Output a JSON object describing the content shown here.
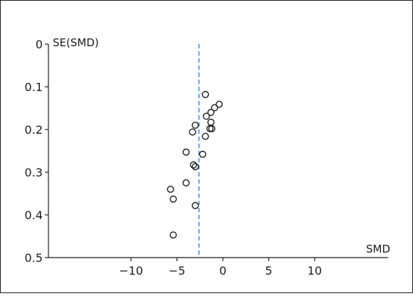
{
  "chart_data": {
    "type": "scatter",
    "title": "",
    "xlabel": "SMD",
    "ylabel": "SE(SMD)",
    "xlim": [
      -19,
      18
    ],
    "ylim": [
      0,
      0.5
    ],
    "y_inverted": true,
    "xticks": [
      -10,
      -5,
      0,
      5,
      10
    ],
    "xtick_labels": [
      "−10",
      "−5",
      "0",
      "5",
      "10"
    ],
    "yticks": [
      0,
      0.1,
      0.2,
      0.3,
      0.4,
      0.5
    ],
    "ytick_labels": [
      "0",
      "0.1",
      "0.2",
      "0.3",
      "0.4",
      "0.5"
    ],
    "reference_line": {
      "x": -2.6,
      "style": "dashed",
      "color": "#3b8fd6"
    },
    "grid": false,
    "legend": "none",
    "marker": "open-circle",
    "points": [
      {
        "x": -1.9,
        "y": 0.118
      },
      {
        "x": -0.4,
        "y": 0.141
      },
      {
        "x": -0.9,
        "y": 0.149
      },
      {
        "x": -1.3,
        "y": 0.16
      },
      {
        "x": -1.8,
        "y": 0.169
      },
      {
        "x": -1.3,
        "y": 0.183
      },
      {
        "x": -3.0,
        "y": 0.19
      },
      {
        "x": -1.4,
        "y": 0.198
      },
      {
        "x": -1.2,
        "y": 0.198
      },
      {
        "x": -3.3,
        "y": 0.206
      },
      {
        "x": -1.9,
        "y": 0.216
      },
      {
        "x": -4.0,
        "y": 0.253
      },
      {
        "x": -2.2,
        "y": 0.258
      },
      {
        "x": -3.2,
        "y": 0.283
      },
      {
        "x": -3.0,
        "y": 0.287
      },
      {
        "x": -4.0,
        "y": 0.325
      },
      {
        "x": -5.7,
        "y": 0.34
      },
      {
        "x": -5.4,
        "y": 0.363
      },
      {
        "x": -3.0,
        "y": 0.378
      },
      {
        "x": -5.4,
        "y": 0.447
      }
    ]
  }
}
